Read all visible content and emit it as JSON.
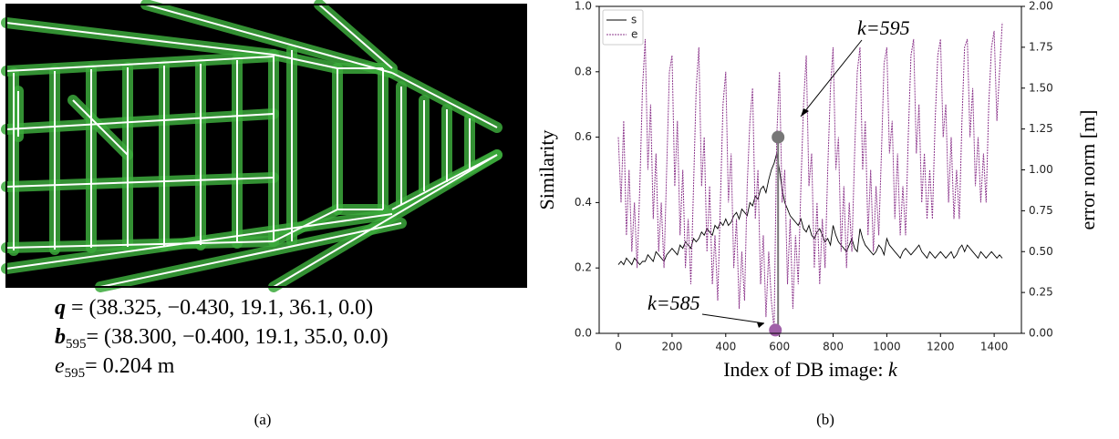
{
  "panel_a": {
    "lines": [
      {
        "symbol": "q",
        "sub": null,
        "text": " = (38.325, −0.430, 19.1, 36.1, 0.0)"
      },
      {
        "symbol": "b",
        "sub": "595",
        "text": "= (38.300, −0.400, 19.1, 35.0, 0.0)"
      },
      {
        "symbol": "e",
        "sub": "595",
        "text": "= 0.204 m"
      }
    ],
    "label": "(a)"
  },
  "panel_b": {
    "label": "(b)"
  },
  "chart_data": {
    "type": "line",
    "xlabel": "Index of DB image: ",
    "xlabel_var": "k",
    "ylabel": "Similarity",
    "y2label": "error norm [m]",
    "xlim": [
      -71.5,
      1501.5
    ],
    "xticks": [
      0,
      200,
      400,
      600,
      800,
      1000,
      1200,
      1400
    ],
    "ylim": [
      0,
      1
    ],
    "yticks": [
      {
        "value": 0,
        "label": "0.0"
      },
      {
        "value": 0.2,
        "label": "0.2"
      },
      {
        "value": 0.4,
        "label": "0.4"
      },
      {
        "value": 0.6,
        "label": "0.6"
      },
      {
        "value": 0.8,
        "label": "0.8"
      },
      {
        "value": 1,
        "label": "1.0"
      }
    ],
    "y2lim": [
      0,
      2
    ],
    "y2ticks": [
      {
        "value": 0,
        "label": "0.00"
      },
      {
        "value": 0.25,
        "label": "0.25"
      },
      {
        "value": 0.5,
        "label": "0.50"
      },
      {
        "value": 0.75,
        "label": "0.75"
      },
      {
        "value": 1,
        "label": "1.00"
      },
      {
        "value": 1.25,
        "label": "1.25"
      },
      {
        "value": 1.5,
        "label": "1.50"
      },
      {
        "value": 1.75,
        "label": "1.75"
      },
      {
        "value": 2,
        "label": "2.00"
      }
    ],
    "legend": "upper left",
    "x": [
      0,
      10,
      20,
      30,
      40,
      50,
      60,
      70,
      80,
      90,
      100,
      110,
      120,
      130,
      140,
      150,
      160,
      170,
      180,
      190,
      200,
      210,
      220,
      230,
      240,
      250,
      260,
      270,
      280,
      290,
      300,
      310,
      320,
      330,
      340,
      350,
      360,
      370,
      380,
      390,
      400,
      410,
      420,
      430,
      440,
      450,
      460,
      470,
      480,
      490,
      500,
      510,
      520,
      530,
      540,
      550,
      560,
      570,
      580,
      590,
      600,
      610,
      620,
      630,
      640,
      650,
      660,
      670,
      680,
      690,
      700,
      710,
      720,
      730,
      740,
      750,
      760,
      770,
      780,
      790,
      800,
      810,
      820,
      830,
      840,
      850,
      860,
      870,
      880,
      890,
      900,
      910,
      920,
      930,
      940,
      950,
      960,
      970,
      980,
      990,
      1000,
      1010,
      1020,
      1030,
      1040,
      1050,
      1060,
      1070,
      1080,
      1090,
      1100,
      1110,
      1120,
      1130,
      1140,
      1150,
      1160,
      1170,
      1180,
      1190,
      1200,
      1210,
      1220,
      1230,
      1240,
      1250,
      1260,
      1270,
      1280,
      1290,
      1300,
      1310,
      1320,
      1330,
      1340,
      1350,
      1360,
      1370,
      1380,
      1390,
      1400,
      1410,
      1420,
      1430
    ],
    "series": [
      {
        "name": "s",
        "color": "#000000",
        "values": [
          0.21,
          0.22,
          0.21,
          0.23,
          0.22,
          0.21,
          0.23,
          0.22,
          0.21,
          0.22,
          0.22,
          0.24,
          0.23,
          0.22,
          0.25,
          0.24,
          0.23,
          0.22,
          0.24,
          0.25,
          0.26,
          0.25,
          0.24,
          0.27,
          0.26,
          0.28,
          0.27,
          0.26,
          0.29,
          0.28,
          0.29,
          0.31,
          0.3,
          0.32,
          0.31,
          0.3,
          0.33,
          0.32,
          0.34,
          0.33,
          0.35,
          0.33,
          0.34,
          0.36,
          0.37,
          0.35,
          0.38,
          0.37,
          0.36,
          0.4,
          0.39,
          0.42,
          0.41,
          0.44,
          0.45,
          0.43,
          0.47,
          0.5,
          0.52,
          0.55,
          0.5,
          0.44,
          0.4,
          0.38,
          0.36,
          0.35,
          0.34,
          0.33,
          0.35,
          0.32,
          0.31,
          0.33,
          0.3,
          0.29,
          0.31,
          0.32,
          0.3,
          0.28,
          0.29,
          0.27,
          0.33,
          0.3,
          0.28,
          0.27,
          0.26,
          0.25,
          0.27,
          0.29,
          0.26,
          0.25,
          0.32,
          0.29,
          0.27,
          0.26,
          0.25,
          0.24,
          0.25,
          0.27,
          0.26,
          0.24,
          0.29,
          0.27,
          0.26,
          0.25,
          0.24,
          0.23,
          0.25,
          0.26,
          0.25,
          0.24,
          0.25,
          0.26,
          0.27,
          0.25,
          0.24,
          0.23,
          0.25,
          0.24,
          0.23,
          0.24,
          0.25,
          0.24,
          0.23,
          0.24,
          0.25,
          0.23,
          0.24,
          0.26,
          0.27,
          0.25,
          0.27,
          0.26,
          0.25,
          0.24,
          0.23,
          0.25,
          0.24,
          0.23,
          0.24,
          0.25,
          0.24,
          0.23,
          0.24,
          0.23
        ]
      },
      {
        "name": "e",
        "color": "#8e3a8e",
        "axis": "y2",
        "values": [
          1.2,
          0.8,
          1.3,
          0.6,
          1.0,
          0.5,
          0.8,
          0.4,
          0.9,
          1.5,
          1.8,
          1.0,
          1.4,
          0.7,
          1.1,
          0.5,
          0.8,
          0.4,
          1.0,
          1.6,
          1.7,
          0.9,
          1.3,
          0.6,
          1.0,
          0.4,
          0.7,
          0.3,
          0.9,
          1.5,
          1.75,
          0.9,
          1.2,
          0.5,
          0.9,
          0.3,
          0.6,
          0.2,
          0.8,
          1.4,
          1.6,
          0.8,
          1.1,
          0.4,
          0.7,
          0.15,
          0.5,
          0.2,
          0.9,
          1.3,
          1.5,
          0.7,
          1.0,
          0.3,
          0.6,
          0.1,
          0.5,
          0.2,
          0.02,
          1.2,
          1.6,
          0.8,
          1.0,
          0.3,
          0.7,
          0.15,
          0.6,
          0.3,
          0.9,
          1.4,
          1.7,
          0.9,
          1.1,
          0.4,
          0.8,
          0.3,
          0.7,
          0.4,
          1.0,
          1.5,
          1.75,
          1.0,
          1.2,
          0.5,
          0.9,
          0.4,
          0.8,
          0.5,
          1.1,
          1.6,
          1.75,
          1.0,
          1.3,
          0.6,
          1.0,
          0.5,
          0.9,
          0.6,
          1.1,
          1.65,
          1.75,
          1.1,
          1.3,
          0.7,
          1.1,
          0.6,
          0.9,
          0.6,
          1.2,
          1.7,
          1.8,
          1.1,
          1.4,
          0.8,
          1.1,
          0.7,
          1.0,
          0.7,
          1.3,
          1.7,
          1.8,
          1.2,
          1.4,
          0.8,
          1.2,
          0.7,
          1.0,
          0.7,
          1.3,
          1.75,
          1.8,
          1.2,
          1.5,
          0.9,
          1.2,
          0.8,
          1.1,
          0.8,
          1.4,
          1.75,
          1.85,
          1.3,
          1.6,
          1.9
        ]
      }
    ],
    "annotations": [
      {
        "text": "k=595",
        "x": 595,
        "y": 0.6,
        "color": "#777777"
      },
      {
        "text": "k=585",
        "x": 585,
        "y": 0.01,
        "color": "#a060a8"
      }
    ]
  }
}
